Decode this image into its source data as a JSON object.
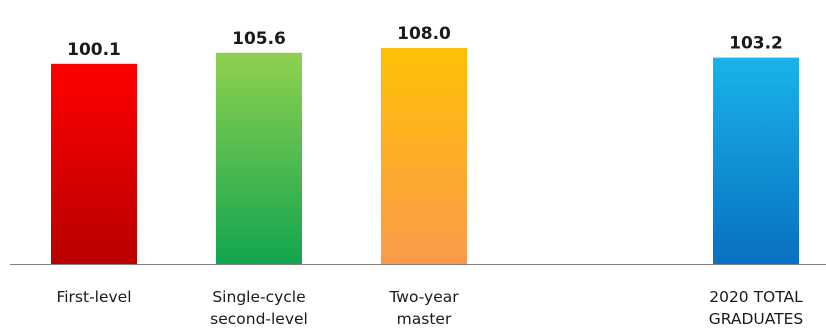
{
  "chart_data": {
    "type": "bar",
    "title": "",
    "xlabel": "",
    "ylabel": "",
    "ylim": [
      0,
      110
    ],
    "grid": false,
    "legend": "none",
    "categories": [
      [
        "First-level"
      ],
      [
        "Single-cycle",
        "second-level"
      ],
      [
        "Two-year",
        "master"
      ],
      [
        "2020 TOTAL",
        "GRADUATES"
      ]
    ],
    "values": [
      100.1,
      105.6,
      108.0,
      103.2
    ],
    "value_labels": [
      "100.1",
      "105.6",
      "108.0",
      "103.2"
    ],
    "bar_colors": [
      {
        "top": "#ff0000",
        "bottom": "#b80000"
      },
      {
        "top": "#8fd14f",
        "bottom": "#12a54f"
      },
      {
        "top": "#ffc107",
        "bottom": "#fb9a4b"
      },
      {
        "top": "#18b4ea",
        "bottom": "#0a6fc2"
      }
    ],
    "axis_color": "#7f7f7f"
  }
}
